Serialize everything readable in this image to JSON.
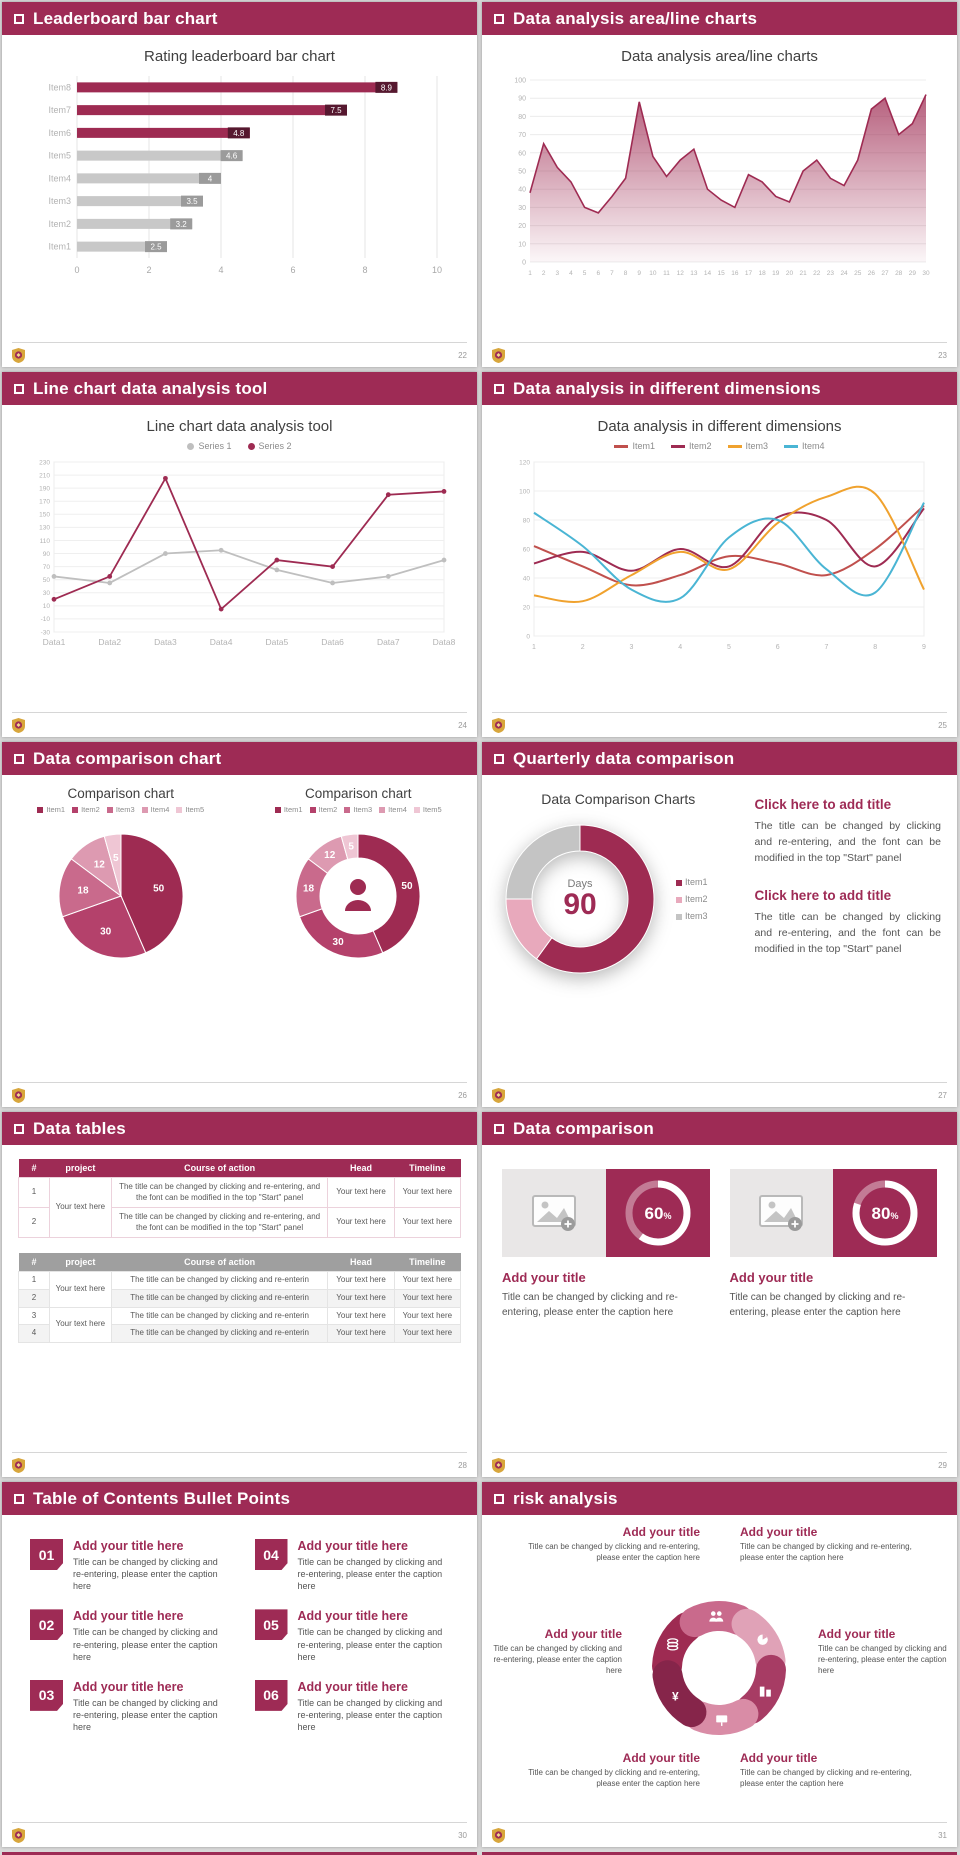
{
  "theme": {
    "accent": "#9e2b55",
    "gray": "#c8c8c8",
    "page_bg": "#d9d9d9"
  },
  "slides": [
    {
      "header": "Leaderboard bar chart",
      "page": "22",
      "chart_title": "Rating leaderboard bar chart",
      "chart_data": {
        "type": "bar",
        "orientation": "horizontal",
        "categories": [
          "Item1",
          "Item2",
          "Item3",
          "Item4",
          "Item5",
          "Item6",
          "Item7",
          "Item8"
        ],
        "values": [
          2.5,
          3.2,
          3.5,
          4,
          4.6,
          4.8,
          7.5,
          8.9
        ],
        "bar_colors": [
          "#c8c8c8",
          "#c8c8c8",
          "#c8c8c8",
          "#c8c8c8",
          "#c8c8c8",
          "#9e2b52",
          "#9e2b52",
          "#9e2b52"
        ],
        "tag_colors": [
          "#9b9b9b",
          "#9b9b9b",
          "#9b9b9b",
          "#9b9b9b",
          "#9b9b9b",
          "#56182f",
          "#56182f",
          "#56182f"
        ],
        "xlim": [
          0,
          10
        ],
        "xticks": [
          0,
          2,
          4,
          6,
          8,
          10
        ]
      }
    },
    {
      "header": "Data analysis area/line charts",
      "page": "23",
      "chart_title": "Data analysis area/line charts",
      "chart_data": {
        "type": "area",
        "x": [
          1,
          2,
          3,
          4,
          5,
          6,
          7,
          8,
          9,
          10,
          11,
          12,
          13,
          14,
          15,
          16,
          17,
          18,
          19,
          20,
          21,
          22,
          23,
          24,
          25,
          26,
          27,
          28,
          29,
          30
        ],
        "values": [
          38,
          65,
          52,
          44,
          30,
          27,
          36,
          46,
          88,
          58,
          47,
          56,
          62,
          40,
          34,
          30,
          48,
          44,
          36,
          33,
          50,
          56,
          46,
          42,
          56,
          84,
          90,
          70,
          76,
          92
        ],
        "ylim": [
          0,
          100
        ],
        "ytick_step": 10,
        "color": "#9e2b52"
      }
    },
    {
      "header": "Line chart data analysis tool",
      "page": "24",
      "chart_title": "Line chart data analysis tool",
      "chart_data": {
        "type": "line",
        "categories": [
          "Data1",
          "Data2",
          "Data3",
          "Data4",
          "Data5",
          "Data6",
          "Data7",
          "Data8"
        ],
        "series": [
          {
            "name": "Series 1",
            "color": "#bfbfbf",
            "values": [
              55,
              45,
              90,
              95,
              65,
              45,
              55,
              80
            ]
          },
          {
            "name": "Series 2",
            "color": "#9e2b52",
            "values": [
              20,
              55,
              205,
              5,
              80,
              70,
              180,
              185
            ]
          }
        ],
        "ylim": [
          -30,
          230
        ],
        "ytick_step": 20
      }
    },
    {
      "header": "Data analysis in different dimensions",
      "page": "25",
      "chart_title": "Data analysis in different dimensions",
      "chart_data": {
        "type": "line",
        "smooth": true,
        "x": [
          1,
          2,
          3,
          4,
          5,
          6,
          7,
          8,
          9
        ],
        "series": [
          {
            "name": "Item1",
            "color": "#c0504d",
            "values": [
              62,
              48,
              35,
              42,
              55,
              50,
              42,
              60,
              90
            ]
          },
          {
            "name": "Item2",
            "color": "#9e2b52",
            "values": [
              50,
              58,
              45,
              60,
              48,
              82,
              80,
              48,
              88
            ]
          },
          {
            "name": "Item3",
            "color": "#f0a22e",
            "values": [
              28,
              24,
              42,
              58,
              46,
              78,
              96,
              98,
              32
            ]
          },
          {
            "name": "Item4",
            "color": "#4ab5d4",
            "values": [
              85,
              62,
              32,
              26,
              68,
              80,
              46,
              30,
              92
            ]
          }
        ],
        "ylim": [
          0,
          120
        ],
        "ytick_step": 20
      }
    },
    {
      "header": "Data comparison chart",
      "page": "26",
      "charts": [
        {
          "title": "Comparison chart",
          "type": "pie",
          "labels": [
            "Item1",
            "Item2",
            "Item3",
            "Item4",
            "Item5"
          ],
          "values": [
            50,
            30,
            18,
            12,
            5
          ],
          "colors": [
            "#9e2b52",
            "#b4416b",
            "#c96a8c",
            "#dd9ab1",
            "#efc6d4"
          ]
        },
        {
          "title": "Comparison chart",
          "type": "donut",
          "labels": [
            "Item1",
            "Item2",
            "Item3",
            "Item4",
            "Item5"
          ],
          "values": [
            50,
            30,
            18,
            12,
            5
          ],
          "colors": [
            "#9e2b52",
            "#b4416b",
            "#c96a8c",
            "#dd9ab1",
            "#efc6d4"
          ]
        }
      ]
    },
    {
      "header": "Quarterly data comparison",
      "page": "27",
      "left": {
        "title": "Data Comparison Charts",
        "center_label": "Days",
        "center_value": "90",
        "chart_data": {
          "type": "donut",
          "labels": [
            "Item1",
            "Item2",
            "Item3"
          ],
          "values": [
            60,
            15,
            25
          ],
          "colors": [
            "#9e2b52",
            "#e8a9bc",
            "#c4c4c4"
          ]
        }
      },
      "right_blocks": [
        {
          "title": "Click here to add title",
          "body": "The title can be changed by clicking and re-entering, and the font can be modified in the top \"Start\" panel"
        },
        {
          "title": "Click here to add title",
          "body": "The title can be changed by clicking and re-entering, and the font can be modified in the top \"Start\" panel"
        }
      ]
    },
    {
      "header": "Data tables",
      "page": "28",
      "table1": {
        "headers": [
          "#",
          "project",
          "Course of action",
          "Head",
          "Timeline"
        ],
        "project_merged": "Your text here",
        "rows": [
          {
            "num": "1",
            "course": "The title can be changed by clicking and re-entering, and the font can be modified in the top \"Start\" panel",
            "head": "Your text here",
            "timeline": "Your text here"
          },
          {
            "num": "2",
            "course": "The title can be changed by clicking and re-entering, and the font can be modified in the top \"Start\" panel",
            "head": "Your text here",
            "timeline": "Your text here"
          }
        ]
      },
      "table2": {
        "headers": [
          "#",
          "project",
          "Course of action",
          "Head",
          "Timeline"
        ],
        "project_groups": [
          "Your text here",
          "Your text here"
        ],
        "rows": [
          {
            "num": "1",
            "course": "The title can be changed by clicking and re-enterin",
            "head": "Your text here",
            "timeline": "Your text here"
          },
          {
            "num": "2",
            "course": "The title can be changed by clicking and re-enterin",
            "head": "Your text here",
            "timeline": "Your text here"
          },
          {
            "num": "3",
            "course": "The title can be changed by clicking and re-enterin",
            "head": "Your text here",
            "timeline": "Your text here"
          },
          {
            "num": "4",
            "course": "The title can be changed by clicking and re-enterin",
            "head": "Your text here",
            "timeline": "Your text here"
          }
        ]
      }
    },
    {
      "header": "Data comparison",
      "page": "29",
      "cards": [
        {
          "percent": 60,
          "title": "Add your title",
          "caption": "Title can be changed by clicking and re-entering, please enter the caption here"
        },
        {
          "percent": 80,
          "title": "Add your title",
          "caption": "Title can be changed by clicking and re-entering, please enter the caption here"
        }
      ]
    },
    {
      "header": "Table of Contents Bullet Points",
      "page": "30",
      "items": [
        {
          "num": "01",
          "title": "Add your title here",
          "caption": "Title can be changed by clicking and re-entering, please enter the caption here"
        },
        {
          "num": "02",
          "title": "Add your title here",
          "caption": "Title can be changed by clicking and re-entering, please enter the caption here"
        },
        {
          "num": "03",
          "title": "Add your title here",
          "caption": "Title can be changed by clicking and re-entering, please enter the caption here"
        },
        {
          "num": "04",
          "title": "Add your title here",
          "caption": "Title can be changed by clicking and re-entering, please enter the caption here"
        },
        {
          "num": "05",
          "title": "Add your title here",
          "caption": "Title can be changed by clicking and re-entering, please enter the caption here"
        },
        {
          "num": "06",
          "title": "Add your title here",
          "caption": "Title can be changed by clicking and re-entering, please enter the caption here"
        }
      ]
    },
    {
      "header": "risk analysis",
      "page": "31",
      "wheel_colors": [
        "#9e2b52",
        "#c96a8c",
        "#e0a2b7",
        "#a73c64",
        "#d98ca6",
        "#86254a"
      ],
      "blocks": [
        {
          "title": "Add your title",
          "caption": "Title can be changed by clicking and re-entering, please enter the caption here"
        },
        {
          "title": "Add your title",
          "caption": "Title can be changed by clicking and re-entering, please enter the caption here"
        },
        {
          "title": "Add your title",
          "caption": "Title can be changed by clicking and re-entering, please enter the caption here"
        },
        {
          "title": "Add your title",
          "caption": "Title can be changed by clicking and re-entering, please enter the caption here"
        },
        {
          "title": "Add your title",
          "caption": "Title can be changed by clicking and re-entering, please enter the caption here"
        },
        {
          "title": "Add your title",
          "caption": "Title can be changed by clicking and re-entering, please enter the caption here"
        }
      ]
    }
  ]
}
